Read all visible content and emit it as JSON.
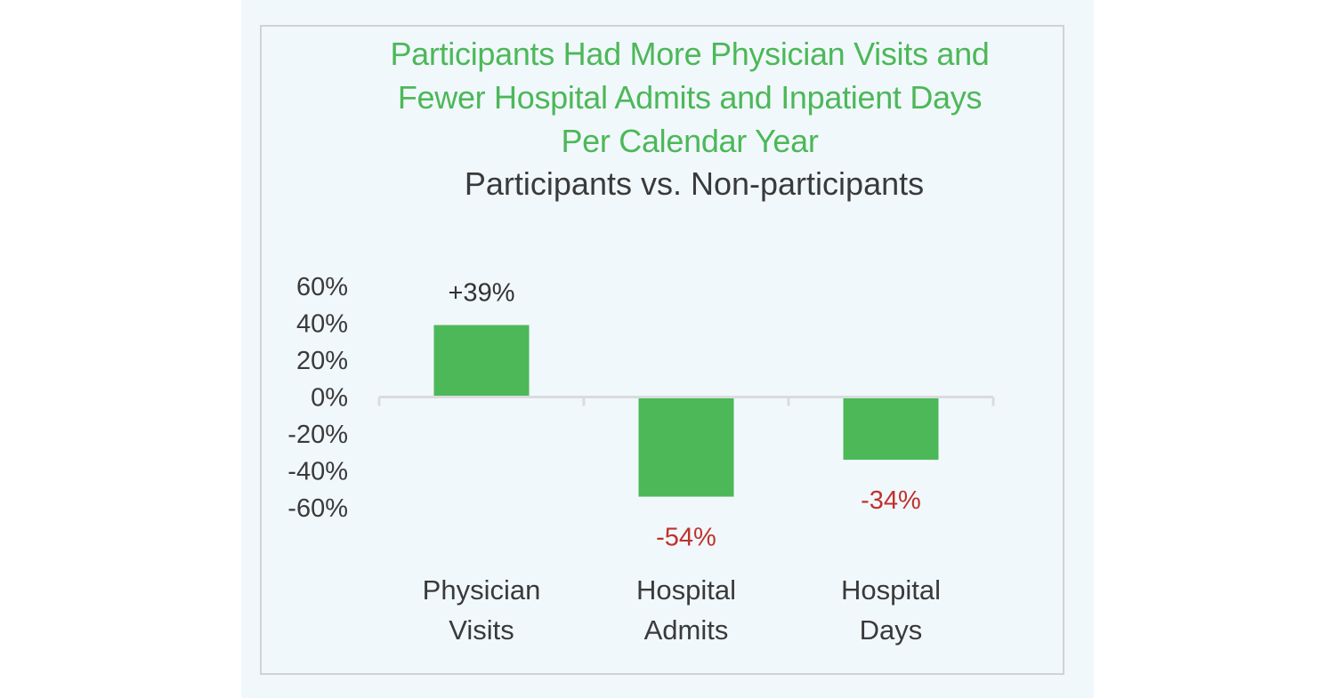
{
  "chart_data": {
    "type": "bar",
    "title": [
      "Participants Had More Physician Visits and",
      "Fewer Hospital Admits and Inpatient Days",
      "Per Calendar Year"
    ],
    "subtitle": "Participants vs. Non-participants",
    "categories": [
      [
        "Physician",
        "Visits"
      ],
      [
        "Hospital",
        "Admits"
      ],
      [
        "Hospital",
        "Days"
      ]
    ],
    "values": [
      39,
      -54,
      -34
    ],
    "data_labels": [
      "+39%",
      "-54%",
      "-34%"
    ],
    "ylim": [
      -60,
      60
    ],
    "yticks": [
      60,
      40,
      20,
      0,
      -20,
      -40,
      -60
    ],
    "ytick_labels": [
      "60%",
      "40%",
      "20%",
      "0%",
      "-20%",
      "-40%",
      "-60%"
    ],
    "xlabel": "",
    "ylabel": "",
    "grid": false,
    "colors": {
      "bar": "#4cb858",
      "positive_label": "#333333",
      "negative_label": "#c0322b",
      "title": "#4cb858",
      "axis": "#d9dcdf"
    }
  }
}
